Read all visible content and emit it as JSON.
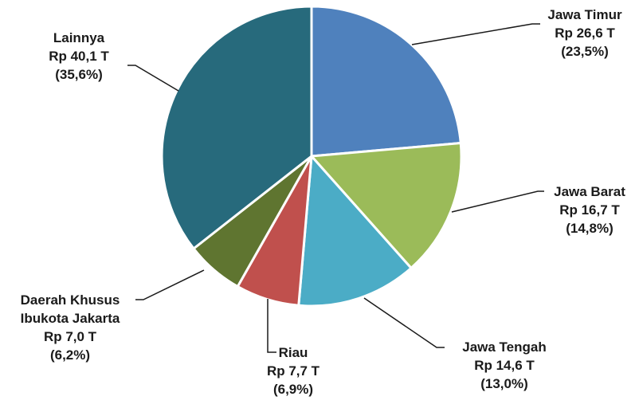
{
  "chart_data": {
    "type": "pie",
    "unit": "Rp T",
    "slices": [
      {
        "name": "Jawa Timur",
        "value": 26.6,
        "value_label": "Rp 26,6 T",
        "pct_label": "(23,5%)",
        "color": "#4f81bd"
      },
      {
        "name": "Jawa Barat",
        "value": 16.7,
        "value_label": "Rp 16,7 T",
        "pct_label": "(14,8%)",
        "color": "#9bbb59"
      },
      {
        "name": "Jawa Tengah",
        "value": 14.6,
        "value_label": "Rp 14,6 T",
        "pct_label": "(13,0%)",
        "color": "#4bacc6"
      },
      {
        "name": "Riau",
        "value": 7.7,
        "value_label": "Rp 7,7 T",
        "pct_label": "(6,9%)",
        "color": "#c0504d"
      },
      {
        "name_lines": [
          "Daerah Khusus",
          "Ibukota Jakarta"
        ],
        "value": 7.0,
        "value_label": "Rp 7,0 T",
        "pct_label": "(6,2%)",
        "color": "#5f7530"
      },
      {
        "name": "Lainnya",
        "value": 40.1,
        "value_label": "Rp 40,1 T",
        "pct_label": "(35,6%)",
        "color": "#276a7c"
      }
    ]
  }
}
